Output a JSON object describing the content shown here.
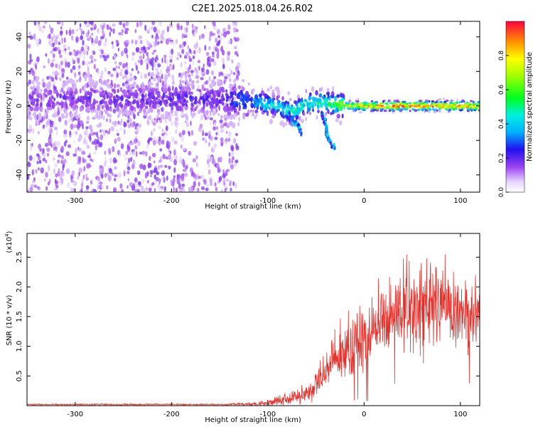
{
  "title": "C2E1.2025.018.04.26.R02",
  "chart_data": [
    {
      "type": "heatmap",
      "xlabel": "Height of straight line (km)",
      "ylabel": "Frequency (Hz)",
      "xlim": [
        -350,
        120
      ],
      "ylim": [
        -50,
        49
      ],
      "xticks": [
        -300,
        -200,
        -100,
        0,
        100
      ],
      "xtick_labels": [
        "-300",
        "-200",
        "-100",
        "0",
        "100"
      ],
      "yticks": [
        -40,
        -20,
        0,
        20,
        40
      ],
      "ytick_labels": [
        "-40",
        "-20",
        "0",
        "20",
        "40"
      ],
      "colorbar": {
        "label": "Normalized spectral amplitude",
        "range": [
          0,
          1
        ],
        "ticks": [
          0,
          0.2,
          0.4,
          0.6,
          0.8
        ],
        "tick_labels": [
          "0.0",
          "0.2",
          "0.4",
          "0.6",
          "0.8"
        ],
        "colormap": "rainbow (white/violet low → blue → cyan → green → yellow → red high)"
      },
      "ridge": [
        {
          "x": -350,
          "y": 3,
          "amp": 0.18
        },
        {
          "x": -300,
          "y": 4,
          "amp": 0.2
        },
        {
          "x": -250,
          "y": 4,
          "amp": 0.2
        },
        {
          "x": -200,
          "y": 4,
          "amp": 0.22
        },
        {
          "x": -150,
          "y": 4,
          "amp": 0.22
        },
        {
          "x": -130,
          "y": 3,
          "amp": 0.3
        },
        {
          "x": -110,
          "y": 2,
          "amp": 0.4
        },
        {
          "x": -90,
          "y": 0,
          "amp": 0.45
        },
        {
          "x": -75,
          "y": -4,
          "amp": 0.5
        },
        {
          "x": -60,
          "y": 2,
          "amp": 0.5
        },
        {
          "x": -40,
          "y": 2,
          "amp": 0.5
        },
        {
          "x": -20,
          "y": 0,
          "amp": 0.7
        },
        {
          "x": 0,
          "y": 0,
          "amp": 0.85
        },
        {
          "x": 40,
          "y": 0,
          "amp": 0.95
        },
        {
          "x": 80,
          "y": 0,
          "amp": 0.95
        },
        {
          "x": 120,
          "y": 0,
          "amp": 0.9
        }
      ],
      "side_branches": [
        {
          "x": [
            -80,
            -70,
            -65
          ],
          "y": [
            -5,
            -10,
            -15
          ]
        },
        {
          "x": [
            -45,
            -40,
            -38
          ],
          "y": [
            -3,
            -10,
            -15
          ]
        },
        {
          "x": [
            -40,
            -35,
            -30
          ],
          "y": [
            -15,
            -22,
            -25
          ]
        }
      ]
    },
    {
      "type": "line",
      "xlabel": "Height of straight line (km)",
      "ylabel": "SNR (10 * v/v)",
      "yscale_label": "(x10",
      "yscale_exponent": "4",
      "yscale_suffix": ")",
      "xlim": [
        -350,
        120
      ],
      "ylim": [
        0,
        2.9
      ],
      "xticks": [
        -300,
        -200,
        -100,
        0,
        100
      ],
      "xtick_labels": [
        "-300",
        "-200",
        "-100",
        "0",
        "100"
      ],
      "yticks": [
        0.5,
        1.0,
        1.5,
        2.0,
        2.5
      ],
      "ytick_labels": [
        "0.5",
        "1.0",
        "1.5",
        "2.0",
        "2.5"
      ],
      "series": [
        {
          "color": "#e8302a",
          "envelope": {
            "x": [
              -350,
              -250,
              -150,
              -110,
              -90,
              -70,
              -55,
              -45,
              -35,
              -25,
              -15,
              -5,
              0,
              10,
              25,
              40,
              60,
              80,
              100,
              120
            ],
            "mean": [
              0.02,
              0.02,
              0.02,
              0.03,
              0.08,
              0.15,
              0.25,
              0.45,
              0.75,
              0.85,
              0.95,
              1.05,
              1.1,
              1.25,
              1.5,
              1.6,
              1.7,
              1.65,
              1.6,
              1.55
            ],
            "amp": [
              0.01,
              0.015,
              0.01,
              0.03,
              0.08,
              0.1,
              0.15,
              0.25,
              0.35,
              0.4,
              0.45,
              0.5,
              0.5,
              0.55,
              0.6,
              0.65,
              0.7,
              0.6,
              0.55,
              0.5
            ]
          }
        }
      ]
    }
  ]
}
